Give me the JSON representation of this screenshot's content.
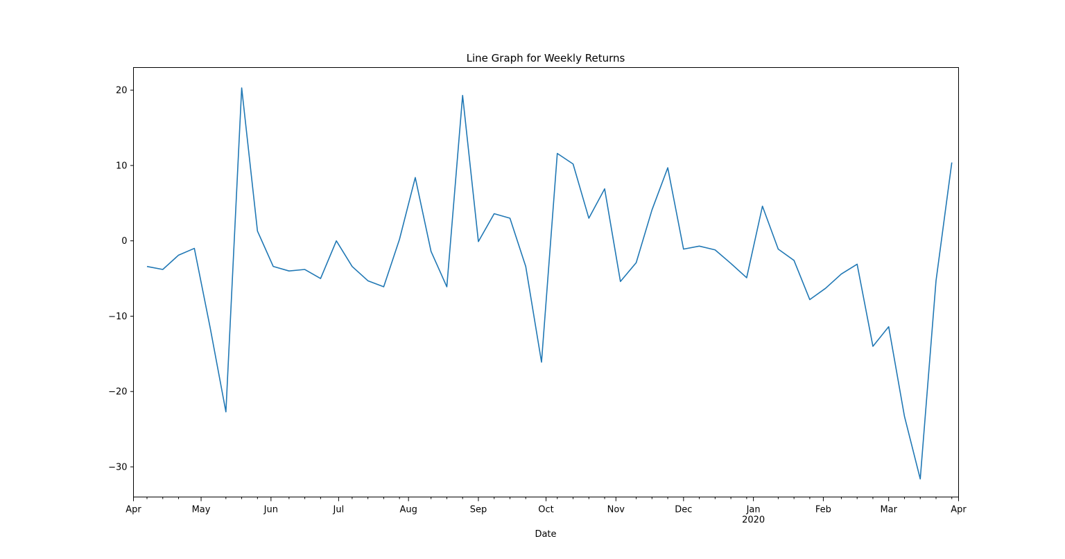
{
  "chart_data": {
    "type": "line",
    "title": "Line Graph for Weekly Returns",
    "xlabel": "Date",
    "ylabel": "",
    "legend": "none",
    "grid": false,
    "xlim": [
      "2019-04-01",
      "2020-04-01"
    ],
    "ylim": [
      -34,
      23
    ],
    "colors": {
      "series": "#1f77b4",
      "axes": "#000000"
    },
    "x_ticks": [
      {
        "date": "2019-04-01",
        "label": "Apr",
        "sublabel": ""
      },
      {
        "date": "2019-05-01",
        "label": "May",
        "sublabel": ""
      },
      {
        "date": "2019-06-01",
        "label": "Jun",
        "sublabel": ""
      },
      {
        "date": "2019-07-01",
        "label": "Jul",
        "sublabel": ""
      },
      {
        "date": "2019-08-01",
        "label": "Aug",
        "sublabel": ""
      },
      {
        "date": "2019-09-01",
        "label": "Sep",
        "sublabel": ""
      },
      {
        "date": "2019-10-01",
        "label": "Oct",
        "sublabel": ""
      },
      {
        "date": "2019-11-01",
        "label": "Nov",
        "sublabel": ""
      },
      {
        "date": "2019-12-01",
        "label": "Dec",
        "sublabel": ""
      },
      {
        "date": "2020-01-01",
        "label": "Jan",
        "sublabel": "2020"
      },
      {
        "date": "2020-02-01",
        "label": "Feb",
        "sublabel": ""
      },
      {
        "date": "2020-03-01",
        "label": "Mar",
        "sublabel": ""
      },
      {
        "date": "2020-04-01",
        "label": "Apr",
        "sublabel": ""
      }
    ],
    "x_minor_ticks": [
      "2019-04-07",
      "2019-04-14",
      "2019-04-21",
      "2019-05-12",
      "2019-05-19",
      "2019-05-26",
      "2019-06-09",
      "2019-06-16",
      "2019-06-23",
      "2019-07-07",
      "2019-07-14",
      "2019-07-21",
      "2019-07-28",
      "2019-08-11",
      "2019-08-18",
      "2019-08-25",
      "2019-09-08",
      "2019-09-15",
      "2019-09-22",
      "2019-10-06",
      "2019-10-13",
      "2019-10-20",
      "2019-10-27",
      "2019-11-10",
      "2019-11-17",
      "2019-11-24",
      "2019-12-08",
      "2019-12-15",
      "2019-12-22",
      "2019-12-29",
      "2020-01-12",
      "2020-01-19",
      "2020-01-26",
      "2020-02-09",
      "2020-02-16",
      "2020-02-23",
      "2020-03-08",
      "2020-03-15",
      "2020-03-22",
      "2020-03-29"
    ],
    "y_ticks": [
      {
        "value": 20,
        "label": "20"
      },
      {
        "value": 10,
        "label": "10"
      },
      {
        "value": 0,
        "label": "0"
      },
      {
        "value": -10,
        "label": "−10"
      },
      {
        "value": -20,
        "label": "−20"
      },
      {
        "value": -30,
        "label": "−30"
      }
    ],
    "series": [
      {
        "name": "",
        "x": [
          "2019-04-07",
          "2019-04-14",
          "2019-04-21",
          "2019-04-28",
          "2019-05-05",
          "2019-05-12",
          "2019-05-19",
          "2019-05-26",
          "2019-06-02",
          "2019-06-09",
          "2019-06-16",
          "2019-06-23",
          "2019-06-30",
          "2019-07-07",
          "2019-07-14",
          "2019-07-21",
          "2019-07-28",
          "2019-08-04",
          "2019-08-11",
          "2019-08-18",
          "2019-08-25",
          "2019-09-01",
          "2019-09-08",
          "2019-09-15",
          "2019-09-22",
          "2019-09-29",
          "2019-10-06",
          "2019-10-13",
          "2019-10-20",
          "2019-10-27",
          "2019-11-03",
          "2019-11-10",
          "2019-11-17",
          "2019-11-24",
          "2019-12-01",
          "2019-12-08",
          "2019-12-15",
          "2019-12-22",
          "2019-12-29",
          "2020-01-05",
          "2020-01-12",
          "2020-01-19",
          "2020-01-26",
          "2020-02-02",
          "2020-02-09",
          "2020-02-16",
          "2020-02-23",
          "2020-03-01",
          "2020-03-08",
          "2020-03-15",
          "2020-03-22",
          "2020-03-29"
        ],
        "values": [
          -3.4,
          -3.8,
          -1.9,
          -1.0,
          -11.5,
          -22.7,
          20.3,
          1.3,
          -3.4,
          -4.0,
          -3.8,
          -5.0,
          0.0,
          -3.4,
          -5.3,
          -6.1,
          0.2,
          8.4,
          -1.4,
          -6.1,
          19.3,
          -0.1,
          3.6,
          3.0,
          -3.4,
          -16.1,
          11.6,
          10.2,
          3.0,
          6.9,
          -5.4,
          -2.9,
          4.1,
          9.7,
          -1.1,
          -0.7,
          -1.2,
          -3.0,
          -4.9,
          4.6,
          -1.1,
          -2.6,
          -7.8,
          -6.3,
          -4.4,
          -3.1,
          -14.0,
          -11.4,
          -23.3,
          -31.6,
          -5.3,
          10.4
        ]
      }
    ]
  }
}
